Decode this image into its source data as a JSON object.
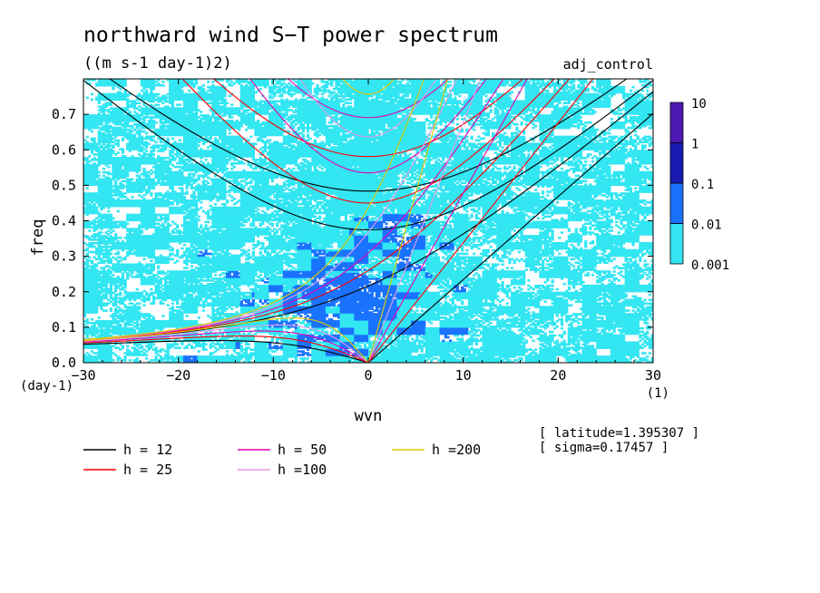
{
  "chart_data": {
    "type": "heatmap",
    "title": "northward wind S−T power spectrum",
    "subtitle": "((m s-1 day-1)2)",
    "run_label": "adj_control",
    "xlabel": "wvn",
    "x_unit": "(1)",
    "ylabel": "freq",
    "y_unit": "(day-1)",
    "xlim": [
      -30,
      30
    ],
    "ylim": [
      0,
      0.8
    ],
    "x_ticks": [
      -30,
      -20,
      -10,
      0,
      10,
      20,
      30
    ],
    "x_tick_labels": [
      "−30",
      "−20",
      "−10",
      "0",
      "10",
      "20",
      "30"
    ],
    "y_ticks": [
      0.0,
      0.1,
      0.2,
      0.3,
      0.4,
      0.5,
      0.6,
      0.7
    ],
    "y_tick_labels": [
      "0.0",
      "0.1",
      "0.2",
      "0.3",
      "0.4",
      "0.5",
      "0.6",
      "0.7"
    ],
    "colorbar": {
      "levels": [
        0.001,
        0.01,
        0.1,
        1,
        10
      ],
      "labels": [
        "0.001",
        "0.01",
        "0.1",
        "1",
        "10"
      ],
      "colors": [
        "#33e6f2",
        "#1a73ff",
        "#1a1ab3",
        "#4d1ab3"
      ]
    },
    "dispersion_legend": [
      {
        "label": "h = 12",
        "h": 12,
        "color": "#000000"
      },
      {
        "label": "h = 25",
        "h": 25,
        "color": "#ff0000"
      },
      {
        "label": "h = 50",
        "h": 50,
        "color": "#e600b3"
      },
      {
        "label": "h =100",
        "h": 100,
        "color": "#e699e6"
      },
      {
        "label": "h =200",
        "h": 200,
        "color": "#e6c800"
      }
    ],
    "info": [
      "[ latitude=1.395307 ]",
      "[ sigma=0.17457 ]"
    ]
  }
}
